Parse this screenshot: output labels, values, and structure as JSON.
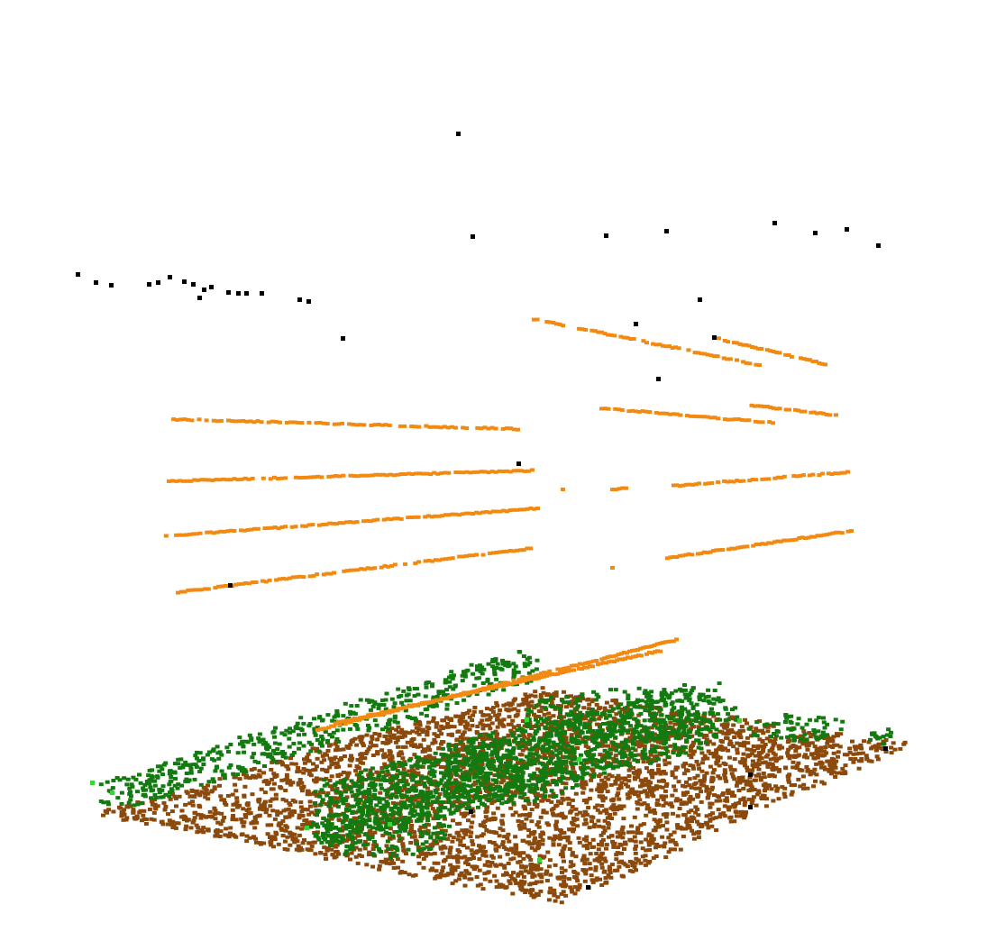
{
  "scene": {
    "type": "lidar-point-cloud",
    "background_color": "#ffffff",
    "classes": [
      {
        "name": "ground",
        "color": "#8b4a0c"
      },
      {
        "name": "vegetation",
        "color": "#137a10"
      },
      {
        "name": "vegetation-highlight",
        "color": "#3ed23a"
      },
      {
        "name": "power-lines",
        "color": "#f28a12"
      },
      {
        "name": "noise",
        "color": "#000000"
      }
    ]
  }
}
